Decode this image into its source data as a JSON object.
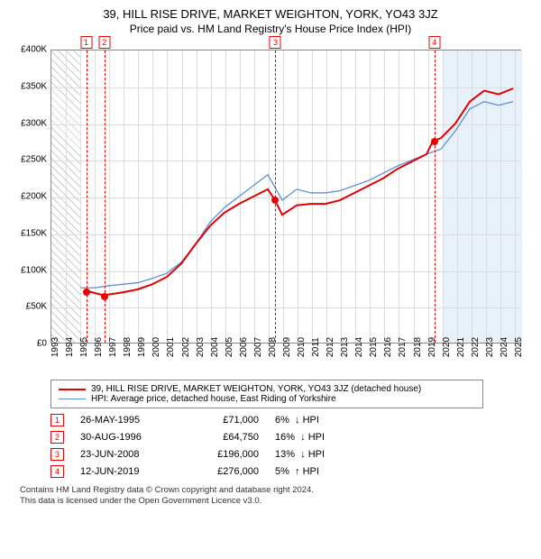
{
  "title": "39, HILL RISE DRIVE, MARKET WEIGHTON, YORK, YO43 3JZ",
  "subtitle": "Price paid vs. HM Land Registry's House Price Index (HPI)",
  "chart": {
    "type": "line",
    "xlim": [
      1993,
      2025.5
    ],
    "ylim": [
      0,
      400000
    ],
    "ytick_step": 50000,
    "yticks": [
      "£0",
      "£50K",
      "£100K",
      "£150K",
      "£200K",
      "£250K",
      "£300K",
      "£350K",
      "£400K"
    ],
    "xticks": [
      1993,
      1994,
      1995,
      1996,
      1997,
      1998,
      1999,
      2000,
      2001,
      2002,
      2003,
      2004,
      2005,
      2006,
      2007,
      2008,
      2009,
      2010,
      2011,
      2012,
      2013,
      2014,
      2015,
      2016,
      2017,
      2018,
      2019,
      2020,
      2021,
      2022,
      2023,
      2024,
      2025
    ],
    "hatch_end": 1995.0,
    "band": [
      2020.0,
      2025.5
    ],
    "grid_color": "#dddddd",
    "background": "#ffffff",
    "series": {
      "price": {
        "label": "39, HILL RISE DRIVE, MARKET WEIGHTON, YORK, YO43 3JZ (detached house)",
        "color": "#e00000",
        "width": 2,
        "points": [
          [
            1995.4,
            71000
          ],
          [
            1996.66,
            64750
          ],
          [
            1997,
            66000
          ],
          [
            1998,
            69000
          ],
          [
            1999,
            73000
          ],
          [
            2000,
            80000
          ],
          [
            2001,
            90000
          ],
          [
            2002,
            108000
          ],
          [
            2003,
            135000
          ],
          [
            2004,
            160000
          ],
          [
            2005,
            178000
          ],
          [
            2006,
            190000
          ],
          [
            2007,
            200000
          ],
          [
            2008,
            210000
          ],
          [
            2008.47,
            196000
          ],
          [
            2009,
            175000
          ],
          [
            2010,
            188000
          ],
          [
            2011,
            190000
          ],
          [
            2012,
            190000
          ],
          [
            2013,
            195000
          ],
          [
            2014,
            205000
          ],
          [
            2015,
            215000
          ],
          [
            2016,
            225000
          ],
          [
            2017,
            238000
          ],
          [
            2018,
            248000
          ],
          [
            2019,
            258000
          ],
          [
            2019.45,
            276000
          ],
          [
            2020,
            280000
          ],
          [
            2021,
            300000
          ],
          [
            2022,
            330000
          ],
          [
            2023,
            345000
          ],
          [
            2024,
            340000
          ],
          [
            2025,
            348000
          ]
        ],
        "markers_at": [
          [
            1995.4,
            71000
          ],
          [
            1996.66,
            64750
          ],
          [
            2008.47,
            196000
          ],
          [
            2019.45,
            276000
          ]
        ]
      },
      "hpi": {
        "label": "HPI: Average price, detached house, East Riding of Yorkshire",
        "color": "#5b8fd6",
        "width": 1.3,
        "points": [
          [
            1995,
            75000
          ],
          [
            1996,
            75000
          ],
          [
            1997,
            78000
          ],
          [
            1998,
            80000
          ],
          [
            1999,
            82000
          ],
          [
            2000,
            88000
          ],
          [
            2001,
            95000
          ],
          [
            2002,
            110000
          ],
          [
            2003,
            135000
          ],
          [
            2004,
            165000
          ],
          [
            2005,
            185000
          ],
          [
            2006,
            200000
          ],
          [
            2007,
            215000
          ],
          [
            2008,
            230000
          ],
          [
            2009,
            195000
          ],
          [
            2010,
            210000
          ],
          [
            2011,
            205000
          ],
          [
            2012,
            205000
          ],
          [
            2013,
            208000
          ],
          [
            2014,
            215000
          ],
          [
            2015,
            222000
          ],
          [
            2016,
            232000
          ],
          [
            2017,
            242000
          ],
          [
            2018,
            250000
          ],
          [
            2019,
            258000
          ],
          [
            2020,
            265000
          ],
          [
            2021,
            290000
          ],
          [
            2022,
            320000
          ],
          [
            2023,
            330000
          ],
          [
            2024,
            325000
          ],
          [
            2025,
            330000
          ]
        ]
      }
    },
    "sale_markers": [
      {
        "n": "1",
        "x": 1995.4
      },
      {
        "n": "2",
        "x": 1996.66
      },
      {
        "n": "3",
        "x": 2008.47
      },
      {
        "n": "4",
        "x": 2019.45
      }
    ]
  },
  "legend": [
    {
      "color": "#e00000",
      "width": 2,
      "key": "chart.series.price.label"
    },
    {
      "color": "#5b8fd6",
      "width": 1.3,
      "key": "chart.series.hpi.label"
    }
  ],
  "sales": [
    {
      "n": "1",
      "date": "26-MAY-1995",
      "price": "£71,000",
      "diff": "6%",
      "arrow": "↓",
      "vs": "HPI"
    },
    {
      "n": "2",
      "date": "30-AUG-1996",
      "price": "£64,750",
      "diff": "16%",
      "arrow": "↓",
      "vs": "HPI"
    },
    {
      "n": "3",
      "date": "23-JUN-2008",
      "price": "£196,000",
      "diff": "13%",
      "arrow": "↓",
      "vs": "HPI"
    },
    {
      "n": "4",
      "date": "12-JUN-2019",
      "price": "£276,000",
      "diff": "5%",
      "arrow": "↑",
      "vs": "HPI"
    }
  ],
  "footer1": "Contains HM Land Registry data © Crown copyright and database right 2024.",
  "footer2": "This data is licensed under the Open Government Licence v3.0."
}
